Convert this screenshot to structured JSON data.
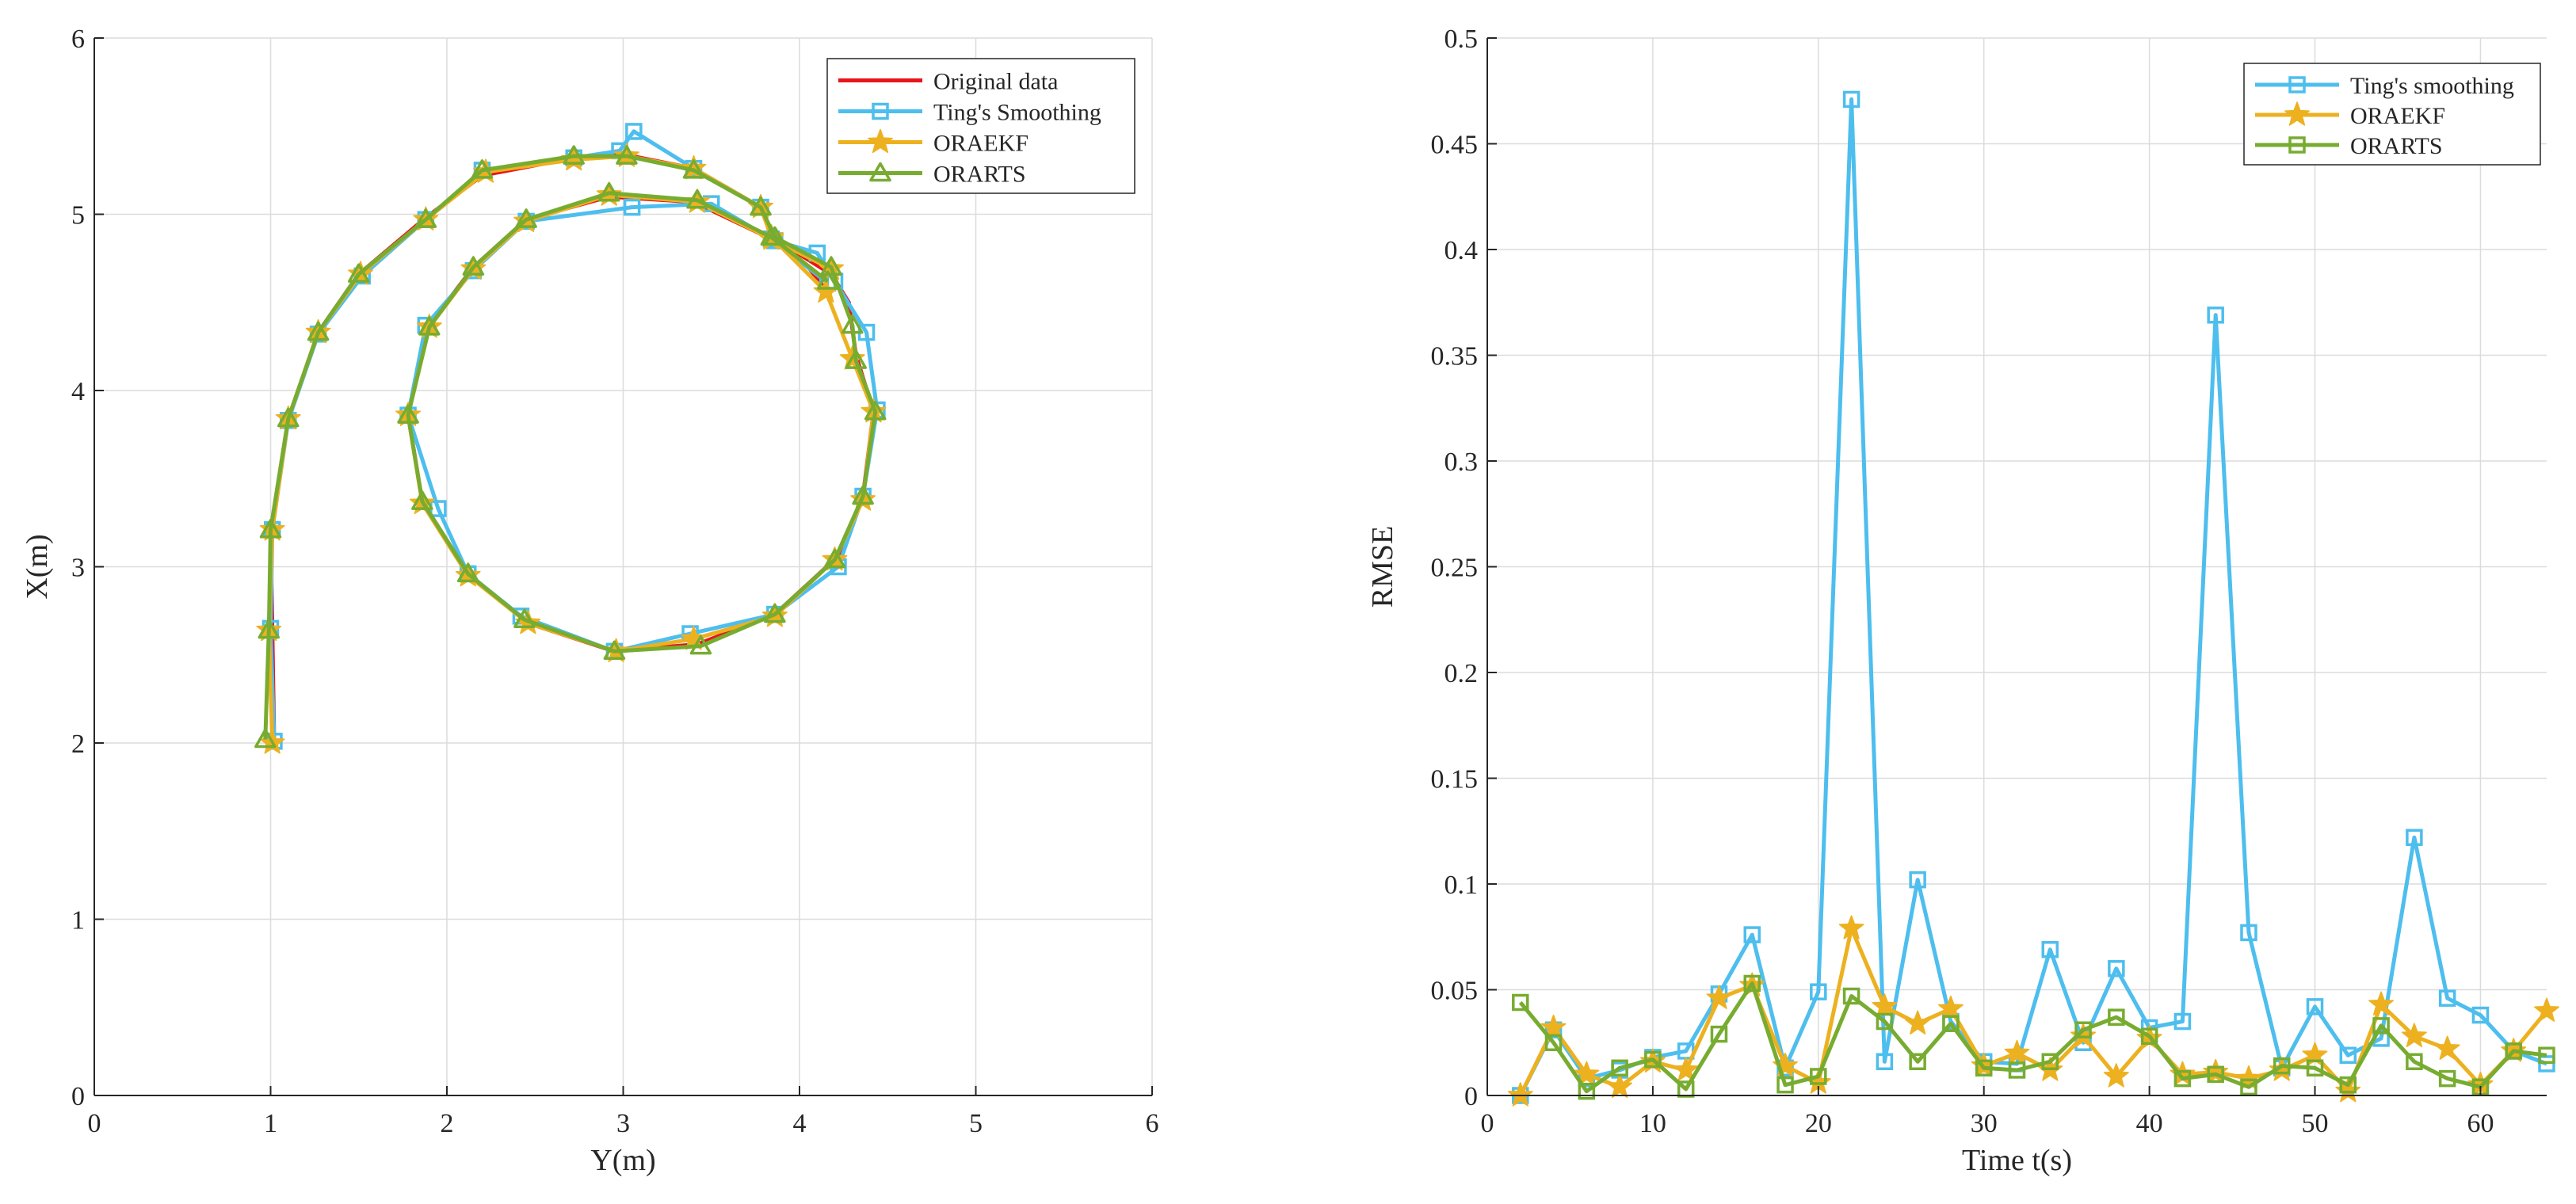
{
  "colors": {
    "original": "#e8141b",
    "ting": "#4dbeee",
    "oraekf": "#edb120",
    "orarts": "#77ac30",
    "grid": "#dcdcdc",
    "axis": "#262626"
  },
  "chart_data": [
    {
      "type": "line",
      "xlabel": "Y(m)",
      "ylabel": "X(m)",
      "xlim": [
        0,
        6
      ],
      "ylim": [
        0,
        6
      ],
      "xticks": [
        "0",
        "1",
        "2",
        "3",
        "4",
        "5",
        "6"
      ],
      "yticks": [
        "0",
        "1",
        "2",
        "3",
        "4",
        "5",
        "6"
      ],
      "grid": true,
      "legend_position": "top-right",
      "legend": [
        "Original data",
        "Ting's Smoothing",
        "ORAEKF",
        "ORARTS"
      ],
      "series": [
        {
          "name": "Original data",
          "marker": "none",
          "color": "#e8141b",
          "points": [
            [
              1.02,
              2.0
            ],
            [
              1.01,
              2.64
            ],
            [
              1.0,
              3.2
            ],
            [
              1.1,
              3.84
            ],
            [
              1.27,
              4.33
            ],
            [
              1.5,
              4.66
            ],
            [
              1.88,
              4.98
            ],
            [
              2.2,
              5.22
            ],
            [
              2.72,
              5.32
            ],
            [
              3.0,
              5.34
            ],
            [
              3.4,
              5.26
            ],
            [
              3.78,
              5.04
            ],
            [
              3.86,
              4.86
            ],
            [
              4.18,
              4.66
            ],
            [
              4.28,
              4.5
            ],
            [
              4.32,
              4.2
            ],
            [
              4.42,
              3.88
            ],
            [
              4.36,
              3.4
            ],
            [
              4.22,
              3.06
            ],
            [
              3.86,
              2.73
            ],
            [
              3.42,
              2.56
            ],
            [
              2.95,
              2.52
            ],
            [
              2.46,
              2.68
            ],
            [
              2.12,
              2.96
            ],
            [
              1.86,
              3.37
            ],
            [
              1.78,
              3.86
            ],
            [
              1.9,
              4.37
            ],
            [
              2.15,
              4.7
            ],
            [
              2.45,
              4.97
            ],
            [
              2.92,
              5.1
            ],
            [
              3.4,
              5.07
            ],
            [
              3.84,
              4.86
            ],
            [
              4.05,
              4.7
            ],
            [
              4.16,
              4.56
            ]
          ]
        },
        {
          "name": "Ting's Smoothing",
          "marker": "square",
          "color": "#4dbeee",
          "points": [
            [
              1.02,
              2.01
            ],
            [
              1.0,
              2.65
            ],
            [
              1.01,
              3.21
            ],
            [
              1.1,
              3.83
            ],
            [
              1.27,
              4.32
            ],
            [
              1.52,
              4.65
            ],
            [
              1.88,
              4.97
            ],
            [
              2.2,
              5.25
            ],
            [
              2.72,
              5.32
            ],
            [
              2.98,
              5.36
            ],
            [
              3.06,
              5.47
            ],
            [
              3.4,
              5.26
            ],
            [
              3.78,
              5.04
            ],
            [
              3.86,
              4.85
            ],
            [
              4.1,
              4.78
            ],
            [
              4.2,
              4.62
            ],
            [
              4.38,
              4.33
            ],
            [
              4.44,
              3.89
            ],
            [
              4.36,
              3.4
            ],
            [
              4.22,
              3.0
            ],
            [
              3.86,
              2.73
            ],
            [
              3.38,
              2.62
            ],
            [
              2.95,
              2.52
            ],
            [
              2.42,
              2.72
            ],
            [
              2.12,
              2.96
            ],
            [
              1.95,
              3.33
            ],
            [
              1.78,
              3.86
            ],
            [
              1.88,
              4.37
            ],
            [
              2.15,
              4.68
            ],
            [
              2.45,
              4.96
            ],
            [
              3.05,
              5.04
            ],
            [
              3.5,
              5.06
            ],
            [
              3.84,
              4.86
            ],
            [
              4.16,
              4.61
            ]
          ]
        },
        {
          "name": "ORAEKF",
          "marker": "star",
          "color": "#edb120",
          "points": [
            [
              1.01,
              2.0
            ],
            [
              0.99,
              2.64
            ],
            [
              1.01,
              3.21
            ],
            [
              1.1,
              3.84
            ],
            [
              1.27,
              4.33
            ],
            [
              1.51,
              4.66
            ],
            [
              1.88,
              4.97
            ],
            [
              2.22,
              5.24
            ],
            [
              2.72,
              5.31
            ],
            [
              3.02,
              5.33
            ],
            [
              3.4,
              5.26
            ],
            [
              3.78,
              5.04
            ],
            [
              3.84,
              4.87
            ],
            [
              4.15,
              4.56
            ],
            [
              4.3,
              4.18
            ],
            [
              4.42,
              3.88
            ],
            [
              4.36,
              3.38
            ],
            [
              4.2,
              3.04
            ],
            [
              3.86,
              2.72
            ],
            [
              3.4,
              2.59
            ],
            [
              2.96,
              2.52
            ],
            [
              2.46,
              2.68
            ],
            [
              2.12,
              2.95
            ],
            [
              1.86,
              3.36
            ],
            [
              1.78,
              3.86
            ],
            [
              1.9,
              4.36
            ],
            [
              2.15,
              4.69
            ],
            [
              2.45,
              4.96
            ],
            [
              2.92,
              5.11
            ],
            [
              3.42,
              5.07
            ],
            [
              3.84,
              4.86
            ],
            [
              4.18,
              4.69
            ]
          ]
        },
        {
          "name": "ORARTS",
          "marker": "triangle",
          "color": "#77ac30",
          "points": [
            [
              0.97,
              2.02
            ],
            [
              0.99,
              2.64
            ],
            [
              1.0,
              3.21
            ],
            [
              1.1,
              3.84
            ],
            [
              1.27,
              4.33
            ],
            [
              1.5,
              4.66
            ],
            [
              1.88,
              4.97
            ],
            [
              2.2,
              5.25
            ],
            [
              2.72,
              5.33
            ],
            [
              3.02,
              5.33
            ],
            [
              3.4,
              5.25
            ],
            [
              3.78,
              5.04
            ],
            [
              3.86,
              4.87
            ],
            [
              4.18,
              4.7
            ],
            [
              4.3,
              4.37
            ],
            [
              4.32,
              4.17
            ],
            [
              4.43,
              3.88
            ],
            [
              4.36,
              3.4
            ],
            [
              4.2,
              3.04
            ],
            [
              3.86,
              2.73
            ],
            [
              3.44,
              2.55
            ],
            [
              2.95,
              2.52
            ],
            [
              2.44,
              2.7
            ],
            [
              2.12,
              2.96
            ],
            [
              1.86,
              3.37
            ],
            [
              1.78,
              3.86
            ],
            [
              1.9,
              4.36
            ],
            [
              2.15,
              4.7
            ],
            [
              2.45,
              4.97
            ],
            [
              2.92,
              5.12
            ],
            [
              3.42,
              5.08
            ],
            [
              3.84,
              4.87
            ],
            [
              4.16,
              4.62
            ]
          ]
        }
      ]
    },
    {
      "type": "line",
      "xlabel": "Time t(s)",
      "ylabel": "RMSE",
      "xlim": [
        0,
        64
      ],
      "ylim": [
        0,
        0.5
      ],
      "xticks": [
        "0",
        "10",
        "20",
        "30",
        "40",
        "50",
        "60"
      ],
      "yticks": [
        "0",
        "0.05",
        "0.1",
        "0.15",
        "0.2",
        "0.25",
        "0.3",
        "0.35",
        "0.4",
        "0.45",
        "0.5"
      ],
      "grid": true,
      "legend_position": "top-right",
      "legend": [
        "Ting's smoothing",
        "ORAEKF",
        "ORARTS"
      ],
      "x": [
        2,
        4,
        6,
        8,
        10,
        12,
        14,
        16,
        18,
        20,
        22,
        24,
        26,
        28,
        30,
        32,
        34,
        36,
        38,
        40,
        42,
        44,
        46,
        48,
        50,
        52,
        54,
        56,
        58,
        60,
        62,
        64
      ],
      "series": [
        {
          "name": "Ting's smoothing",
          "marker": "square",
          "color": "#4dbeee",
          "values": [
            0.0,
            0.031,
            0.008,
            0.012,
            0.018,
            0.021,
            0.048,
            0.076,
            0.013,
            0.049,
            0.471,
            0.016,
            0.102,
            0.035,
            0.016,
            0.015,
            0.069,
            0.025,
            0.06,
            0.032,
            0.035,
            0.369,
            0.077,
            0.013,
            0.042,
            0.019,
            0.027,
            0.122,
            0.046,
            0.038,
            0.021,
            0.015
          ]
        },
        {
          "name": "ORAEKF",
          "marker": "star",
          "color": "#edb120",
          "values": [
            0.0,
            0.032,
            0.01,
            0.004,
            0.016,
            0.012,
            0.046,
            0.052,
            0.014,
            0.006,
            0.079,
            0.042,
            0.034,
            0.041,
            0.014,
            0.02,
            0.012,
            0.028,
            0.009,
            0.027,
            0.01,
            0.011,
            0.008,
            0.012,
            0.019,
            0.002,
            0.043,
            0.028,
            0.022,
            0.005,
            0.021,
            0.04
          ]
        },
        {
          "name": "ORARTS",
          "marker": "square",
          "color": "#77ac30",
          "values": [
            0.044,
            0.025,
            0.002,
            0.013,
            0.017,
            0.003,
            0.029,
            0.053,
            0.005,
            0.009,
            0.047,
            0.035,
            0.016,
            0.034,
            0.013,
            0.012,
            0.016,
            0.031,
            0.037,
            0.028,
            0.008,
            0.01,
            0.004,
            0.014,
            0.013,
            0.005,
            0.033,
            0.016,
            0.008,
            0.004,
            0.021,
            0.019
          ]
        }
      ]
    }
  ]
}
